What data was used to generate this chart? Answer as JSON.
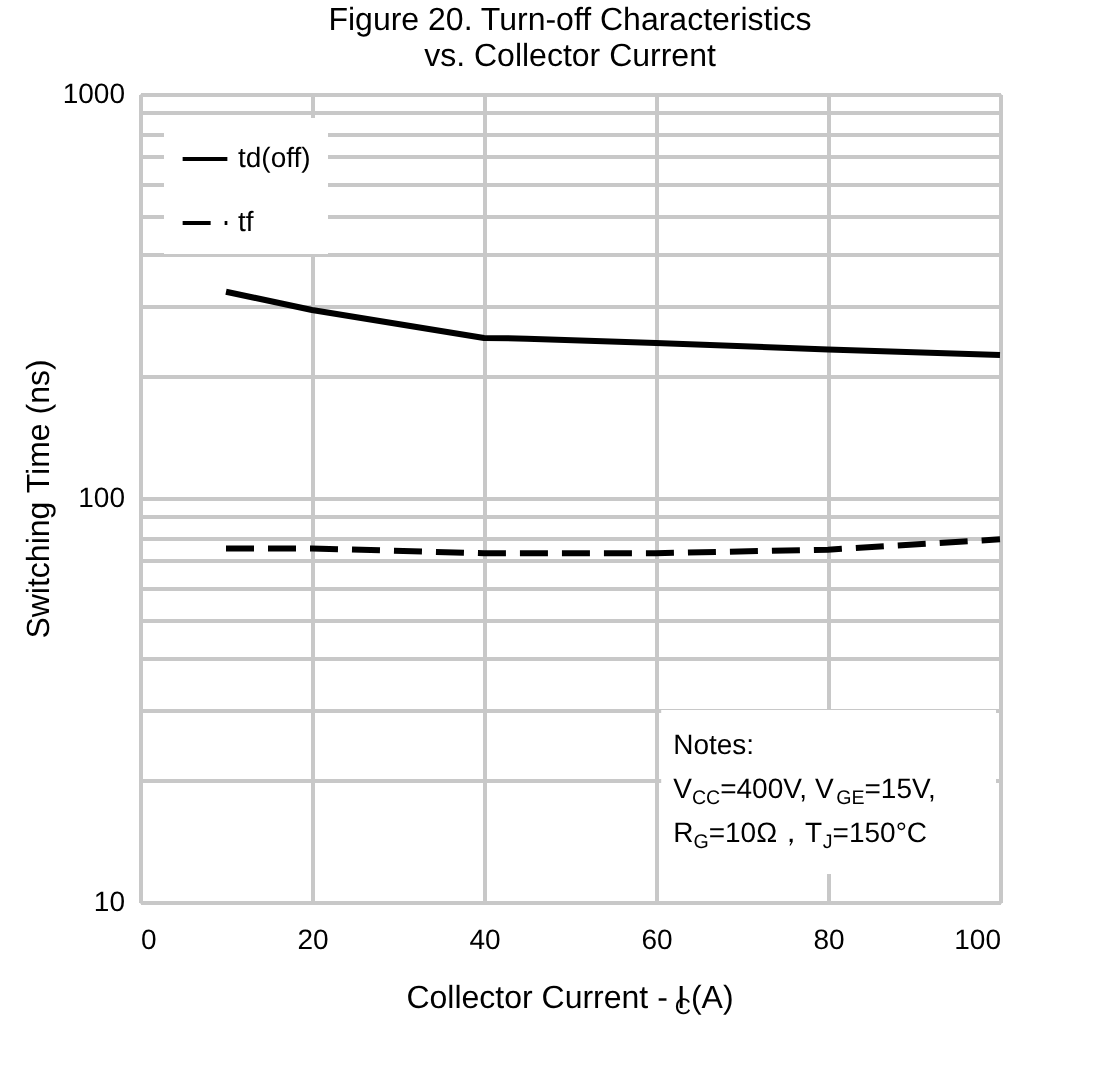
{
  "chart_data": {
    "type": "line",
    "title": [
      "Figure 20. Turn-off Characteristics",
      "vs. Collector Current"
    ],
    "xlabel": "Collector Current - I$_{C}$(A)",
    "ylabel": "Switching Time (ns)",
    "xlim": [
      0,
      100
    ],
    "xticks": [
      0,
      20,
      40,
      60,
      80,
      100
    ],
    "ylim": [
      10,
      1000
    ],
    "yticks": [
      10,
      {
        "value": 20,
        "label": null
      },
      {
        "value": 30,
        "label": null
      },
      {
        "value": 40,
        "label": null
      },
      {
        "value": 50,
        "label": null
      },
      {
        "value": 60,
        "label": null
      },
      {
        "value": 70,
        "label": null
      },
      {
        "value": 80,
        "label": null
      },
      {
        "value": 90,
        "label": null
      },
      100,
      {
        "value": 200,
        "label": null
      },
      {
        "value": 300,
        "label": null
      },
      {
        "value": 400,
        "label": null
      },
      {
        "value": 500,
        "label": null
      },
      {
        "value": 600,
        "label": null
      },
      {
        "value": 700,
        "label": null
      },
      {
        "value": 800,
        "label": null
      },
      {
        "value": 900,
        "label": null
      },
      1000
    ],
    "log": true,
    "grid": true,
    "legend": "top left",
    "marker": "none",
    "series": [
      {
        "name": "td(off)",
        "color": "#000000",
        "line_style": "solid",
        "x": [
          10,
          20,
          40,
          45,
          60,
          80,
          100
        ],
        "values": [
          324,
          292,
          249,
          248,
          242,
          233,
          226
        ]
      },
      {
        "name": "tf",
        "color": "#000000",
        "line_style": "dashed",
        "x": [
          10,
          20,
          40,
          50,
          60,
          80,
          100
        ],
        "values": [
          75,
          75,
          73,
          73,
          73,
          74.5,
          79
        ]
      }
    ],
    "annotations": [
      "Notes:",
      "V$_{CC}$=400V, V$_{GE}$=15V,",
      "R$_{G}$=10Ω，T$_{J}$=150°C"
    ]
  }
}
